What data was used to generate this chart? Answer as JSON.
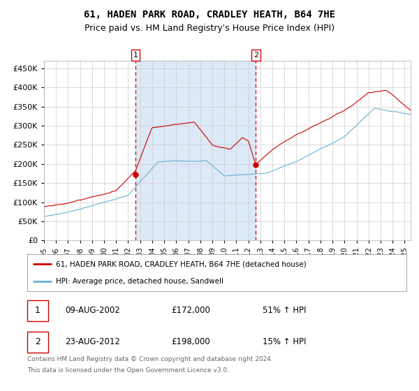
{
  "title": "61, HADEN PARK ROAD, CRADLEY HEATH, B64 7HE",
  "subtitle": "Price paid vs. HM Land Registry's House Price Index (HPI)",
  "legend_line1": "61, HADEN PARK ROAD, CRADLEY HEATH, B64 7HE (detached house)",
  "legend_line2": "HPI: Average price, detached house, Sandwell",
  "footnote1": "Contains HM Land Registry data © Crown copyright and database right 2024.",
  "footnote2": "This data is licensed under the Open Government Licence v3.0.",
  "sale1_date": "09-AUG-2002",
  "sale1_price": "£172,000",
  "sale1_label": "51% ↑ HPI",
  "sale1_year": 2002.62,
  "sale1_value": 172000,
  "sale2_date": "23-AUG-2012",
  "sale2_price": "£198,000",
  "sale2_label": "15% ↑ HPI",
  "sale2_year": 2012.62,
  "sale2_value": 198000,
  "red_color": "#cc0000",
  "blue_color": "#6baed6",
  "bg_shade_color": "#dce9f7",
  "grid_color": "#cccccc",
  "title_fontsize": 10,
  "subtitle_fontsize": 9
}
